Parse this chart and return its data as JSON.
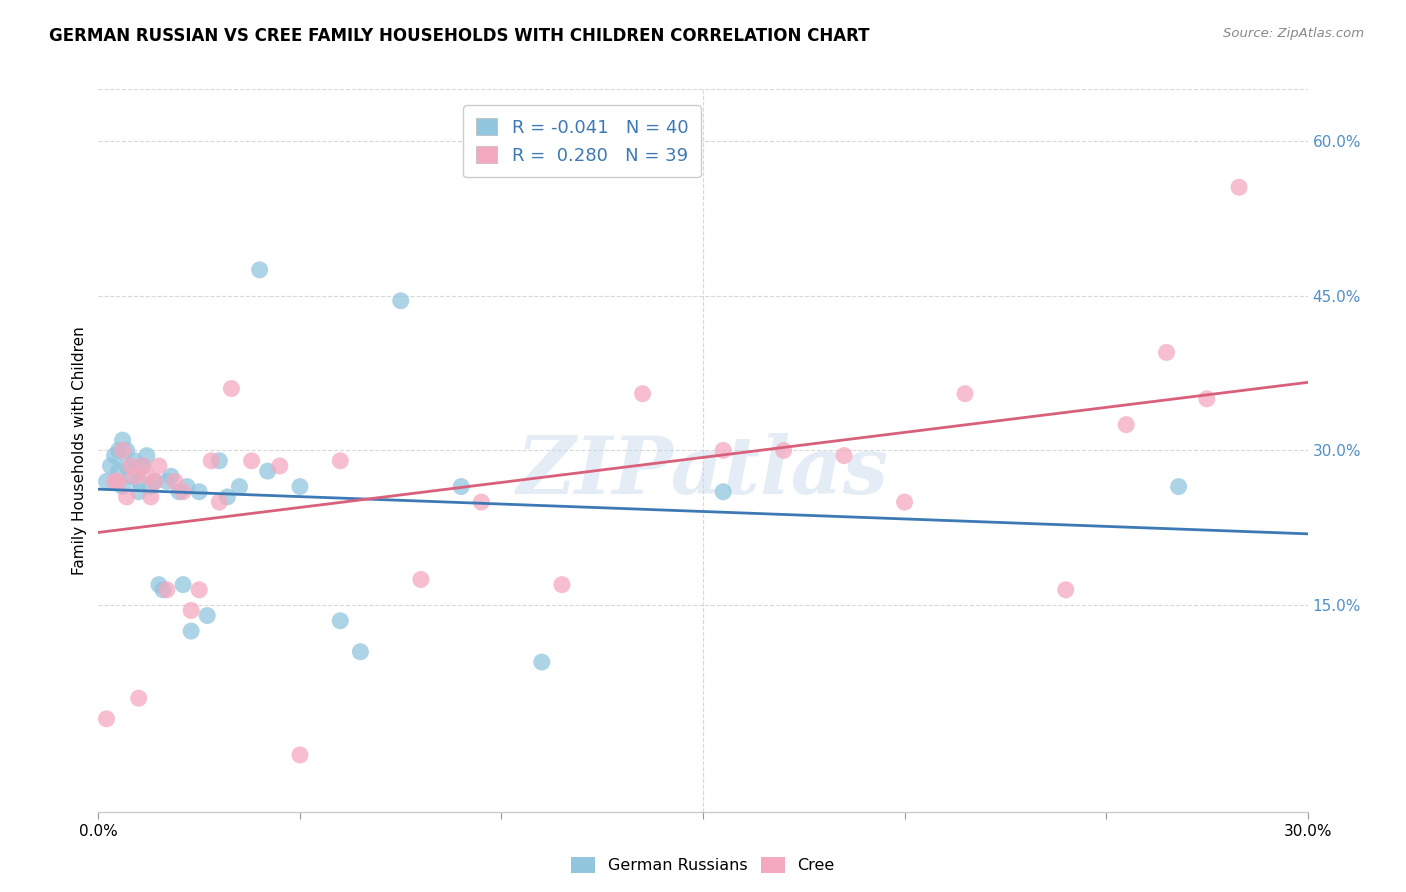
{
  "title": "GERMAN RUSSIAN VS CREE FAMILY HOUSEHOLDS WITH CHILDREN CORRELATION CHART",
  "source": "Source: ZipAtlas.com",
  "ylabel": "Family Households with Children",
  "legend_label_1": "German Russians",
  "legend_label_2": "Cree",
  "r1": -0.041,
  "n1": 40,
  "r2": 0.28,
  "n2": 39,
  "blue_color": "#92c5de",
  "pink_color": "#f4a9be",
  "blue_line_color": "#3d7ab5",
  "pink_line_color": "#d9607a",
  "legend_text_color": "#3d7ab5",
  "right_tick_color": "#5090c8",
  "background_color": "#ffffff",
  "grid_color": "#d8d8d8",
  "watermark": "ZIPatlas",
  "xlim": [
    0.0,
    0.3
  ],
  "ylim": [
    -0.05,
    0.65
  ],
  "right_yticks": [
    0.15,
    0.3,
    0.45,
    0.6
  ],
  "right_yticklabels": [
    "15.0%",
    "30.0%",
    "45.0%",
    "60.0%"
  ],
  "x_tick_positions": [
    0.0,
    0.05,
    0.1,
    0.15,
    0.2,
    0.25,
    0.3
  ],
  "german_russian_x": [
    0.002,
    0.003,
    0.004,
    0.005,
    0.005,
    0.006,
    0.006,
    0.007,
    0.007,
    0.008,
    0.009,
    0.01,
    0.01,
    0.011,
    0.012,
    0.013,
    0.014,
    0.015,
    0.016,
    0.017,
    0.018,
    0.02,
    0.021,
    0.022,
    0.023,
    0.025,
    0.027,
    0.03,
    0.032,
    0.035,
    0.04,
    0.042,
    0.05,
    0.06,
    0.065,
    0.075,
    0.09,
    0.11,
    0.155,
    0.268
  ],
  "german_russian_y": [
    0.27,
    0.285,
    0.295,
    0.3,
    0.28,
    0.31,
    0.265,
    0.285,
    0.3,
    0.275,
    0.29,
    0.27,
    0.26,
    0.285,
    0.295,
    0.265,
    0.27,
    0.17,
    0.165,
    0.27,
    0.275,
    0.26,
    0.17,
    0.265,
    0.125,
    0.26,
    0.14,
    0.29,
    0.255,
    0.265,
    0.475,
    0.28,
    0.265,
    0.135,
    0.105,
    0.445,
    0.265,
    0.095,
    0.26,
    0.265
  ],
  "cree_x": [
    0.002,
    0.004,
    0.005,
    0.006,
    0.007,
    0.008,
    0.009,
    0.01,
    0.011,
    0.012,
    0.013,
    0.014,
    0.015,
    0.017,
    0.019,
    0.021,
    0.023,
    0.025,
    0.028,
    0.03,
    0.033,
    0.038,
    0.045,
    0.06,
    0.08,
    0.095,
    0.115,
    0.135,
    0.155,
    0.17,
    0.185,
    0.2,
    0.215,
    0.24,
    0.255,
    0.265,
    0.275,
    0.283,
    0.05
  ],
  "cree_y": [
    0.04,
    0.27,
    0.27,
    0.3,
    0.255,
    0.285,
    0.275,
    0.06,
    0.285,
    0.275,
    0.255,
    0.27,
    0.285,
    0.165,
    0.27,
    0.26,
    0.145,
    0.165,
    0.29,
    0.25,
    0.36,
    0.29,
    0.285,
    0.29,
    0.175,
    0.25,
    0.17,
    0.355,
    0.3,
    0.3,
    0.295,
    0.25,
    0.355,
    0.165,
    0.325,
    0.395,
    0.35,
    0.555,
    0.005
  ]
}
